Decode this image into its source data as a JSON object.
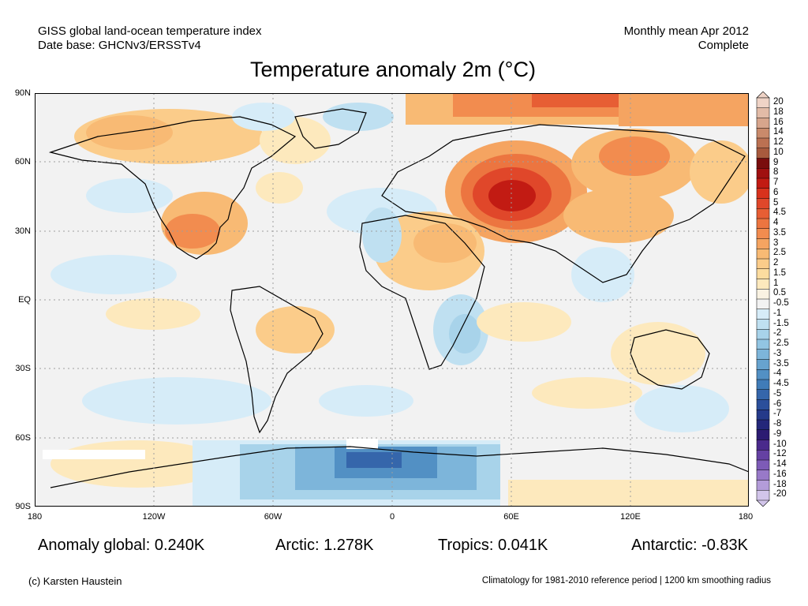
{
  "header": {
    "left_line1": "GISS global land-ocean temperature index",
    "left_line2": "Date base: GHCNv3/ERSSTv4",
    "right_line1": "Monthly mean Apr 2012",
    "right_line2": "Complete"
  },
  "title": "Temperature anomaly 2m (°C)",
  "axes": {
    "lat_labels": [
      "90N",
      "60N",
      "30N",
      "EQ",
      "30S",
      "60S",
      "90S"
    ],
    "lon_labels": [
      "180",
      "120W",
      "60W",
      "0",
      "60E",
      "120E",
      "180"
    ]
  },
  "colorbar": {
    "labels": [
      "20",
      "18",
      "16",
      "14",
      "12",
      "10",
      "9",
      "8",
      "7",
      "6",
      "5",
      "4.5",
      "4",
      "3.5",
      "3",
      "2.5",
      "2",
      "1.5",
      "1",
      "0.5",
      "-0.5",
      "-1",
      "-1.5",
      "-2",
      "-2.5",
      "-3",
      "-3.5",
      "-4",
      "-4.5",
      "-5",
      "-6",
      "-7",
      "-8",
      "-9",
      "-10",
      "-12",
      "-14",
      "-16",
      "-18",
      "-20"
    ],
    "colors": [
      "#efd3c6",
      "#e2bba7",
      "#d7a58c",
      "#c98a6b",
      "#bb7152",
      "#a85a3d",
      "#7a0d0d",
      "#a01010",
      "#c21b13",
      "#d8321d",
      "#e0472a",
      "#e75e34",
      "#ec7540",
      "#f28c4f",
      "#f5a461",
      "#f8ba74",
      "#fbcc8a",
      "#fcdc9f",
      "#fde9bd",
      "#f9f2e2",
      "#f2f2f2",
      "#d6ecf8",
      "#bfe0f1",
      "#a8d3ea",
      "#92c5e3",
      "#7db5da",
      "#67a3cf",
      "#5290c4",
      "#407cb8",
      "#3566ab",
      "#2b4f9b",
      "#253a8a",
      "#24277a",
      "#2c1b72",
      "#4a2a8c",
      "#6541a3",
      "#7d5bb7",
      "#9879c8",
      "#b39cd9",
      "#d2c5ea"
    ]
  },
  "stats": {
    "global": "Anomaly global: 0.240K",
    "arctic": "Arctic: 1.278K",
    "tropics": "Tropics: 0.041K",
    "antarctic": "Antarctic: -0.83K"
  },
  "footer": {
    "credit": "(c) Karsten Haustein",
    "note": "Climatology for 1981-2010 reference period | 1200 km smoothing radius"
  }
}
